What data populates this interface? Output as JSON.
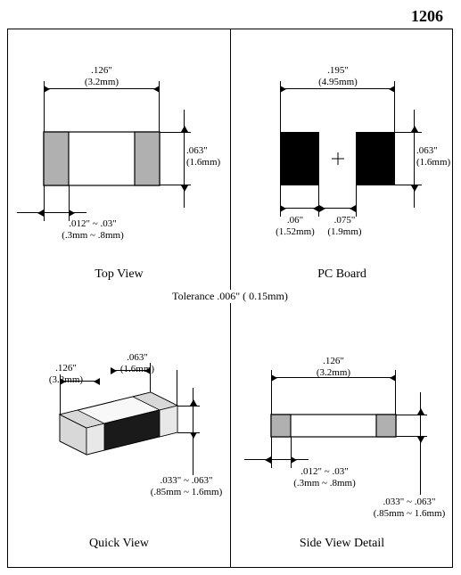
{
  "package_code": "1206",
  "tolerance_label": "Tolerance   .006\" (   0.15mm)",
  "top_view": {
    "caption": "Top View",
    "length": ".126\"\n(3.2mm)",
    "width": ".063\"\n(1.6mm)",
    "terminal": ".012\" ~ .03\"\n(.3mm ~ .8mm)",
    "body_fill": "#ffffff",
    "terminal_fill": "#b0b0b0",
    "stroke": "#000000"
  },
  "pc_board": {
    "caption": "PC Board",
    "span": ".195\"\n(4.95mm)",
    "pad_h": ".063\"\n(1.6mm)",
    "pad_w": ".06\"\n(1.52mm)",
    "gap": ".075\"\n(1.9mm)",
    "pad_fill": "#000000"
  },
  "quick_view": {
    "caption": "Quick View",
    "length": ".126\"\n(3.2mm)",
    "width": ".063\"\n(1.6mm)",
    "height": ".033\" ~ .063\"\n(.85mm ~ 1.6mm)",
    "body_fill": "#1a1a1a",
    "terminal_fill": "#d8d8d8"
  },
  "side_view": {
    "caption": "Side View Detail",
    "length": ".126\"\n(3.2mm)",
    "terminal": ".012\" ~ .03\"\n(.3mm ~ .8mm)",
    "height": ".033\" ~ .063\"\n(.85mm ~ 1.6mm)",
    "body_fill": "#ffffff",
    "terminal_fill": "#b0b0b0"
  }
}
